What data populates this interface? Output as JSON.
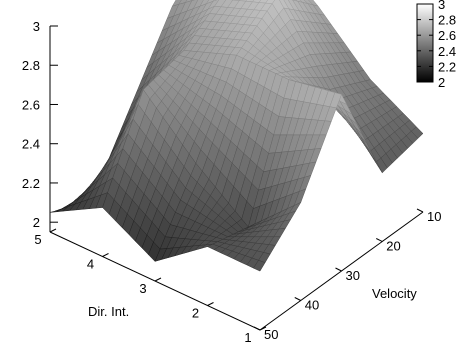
{
  "chart_data": {
    "type": "surface",
    "xlabel": "Velocity",
    "ylabel": "Dir. Int.",
    "zlabel": "",
    "title": "",
    "x_ticks": [
      10,
      20,
      30,
      40,
      50
    ],
    "x_tick_labels": [
      "10",
      "20",
      "30",
      "40",
      "50"
    ],
    "y_ticks": [
      1,
      2,
      3,
      4,
      5
    ],
    "y_tick_labels": [
      "1",
      "2",
      "3",
      "4",
      "5"
    ],
    "z_ticks": [
      2,
      2.2,
      2.4,
      2.6,
      2.8,
      3
    ],
    "z_tick_labels": [
      "2",
      "2.2",
      "2.4",
      "2.6",
      "2.8",
      "3"
    ],
    "zlim": [
      1.95,
      3
    ],
    "colorbar": {
      "min": 2,
      "max": 3,
      "ticks": [
        2,
        2.2,
        2.4,
        2.6,
        2.8,
        3
      ],
      "tick_labels": [
        "2",
        "2.2",
        "2.4",
        "2.6",
        "2.8",
        "3"
      ],
      "colormap": "gray",
      "low_color": "#000000",
      "high_color": "#ffffff"
    },
    "grid": "x",
    "y": [
      1,
      2,
      3,
      4,
      5
    ],
    "x": [
      10,
      20,
      30,
      40,
      50
    ],
    "z": [
      [
        2.35,
        2.3,
        2.85,
        2.45,
        2.25
      ],
      [
        2.5,
        2.6,
        2.8,
        2.2,
        2.25
      ],
      [
        2.75,
        2.95,
        2.8,
        2.4,
        2.05
      ],
      [
        2.95,
        2.85,
        2.7,
        2.65,
        2.2
      ],
      [
        2.85,
        2.65,
        2.3,
        1.95,
        2.05
      ]
    ],
    "z_note": "rows follow y (Dir. Int. 1..5), columns follow x (Velocity 10..50)"
  }
}
